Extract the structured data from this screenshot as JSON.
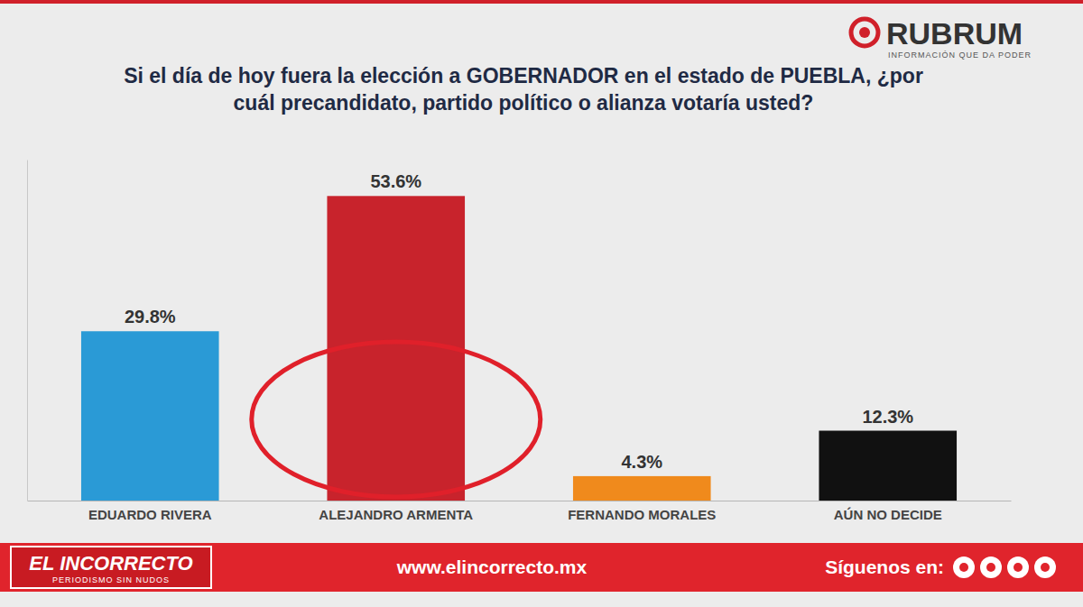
{
  "chart_data": {
    "type": "bar",
    "title": "Si el día de hoy fuera la elección a GOBERNADOR en el estado de PUEBLA, ¿por cuál precandidato, partido político o alianza votaría usted?",
    "categories": [
      "EDUARDO RIVERA",
      "ALEJANDRO ARMENTA",
      "FERNANDO MORALES",
      "AÚN NO DECIDE"
    ],
    "values": [
      29.8,
      53.6,
      4.3,
      12.3
    ],
    "value_labels": [
      "29.8%",
      "53.6%",
      "4.3%",
      "12.3%"
    ],
    "colors": [
      "#2a9ad6",
      "#c8232c",
      "#f08a1c",
      "#111111"
    ],
    "ylim": [
      0,
      60
    ],
    "yticks": [],
    "data_labels": true,
    "tick_labels": "x"
  },
  "header": {
    "brand": "RUBRUM",
    "tagline": "INFORMACIÓN QUE DA PODER"
  },
  "footer": {
    "logo": "EL INCORRECTO",
    "logo_tagline": "PERIODISMO SIN NUDOS",
    "url": "www.elincorrecto.mx",
    "follow": "Síguenos en:"
  }
}
